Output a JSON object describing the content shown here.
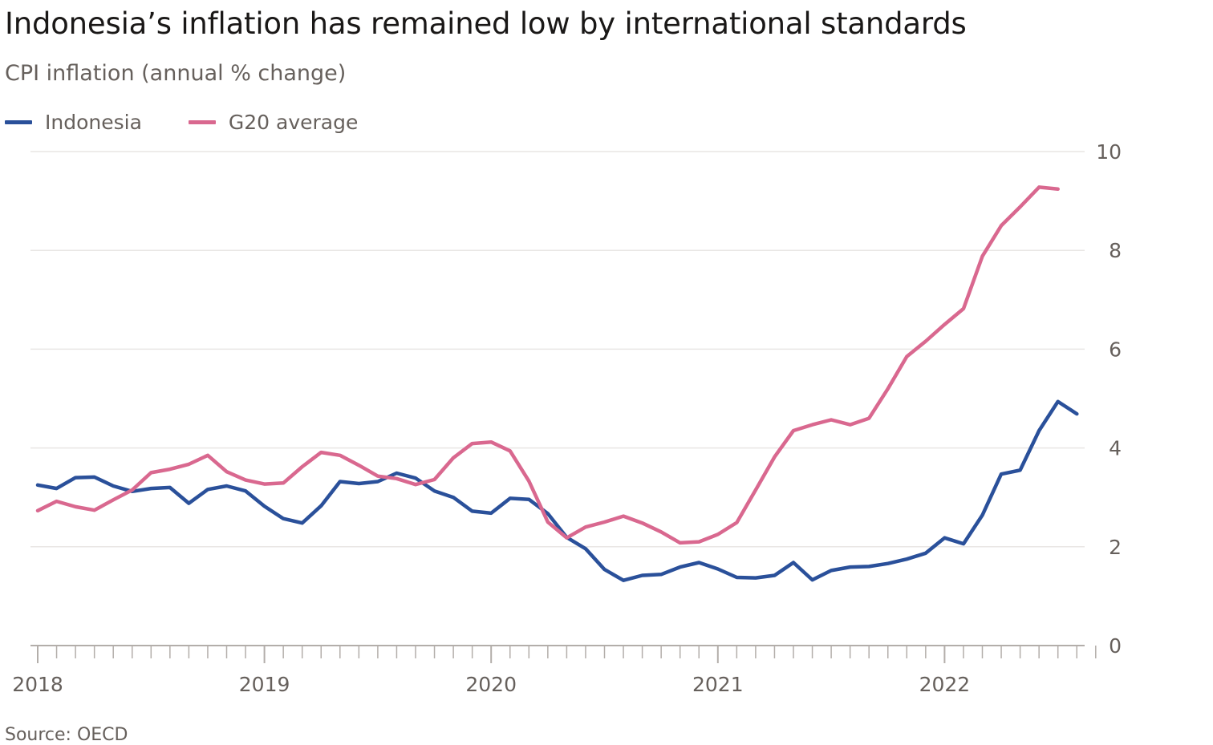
{
  "title": "Indonesia’s inflation has remained low by international standards",
  "subtitle": "CPI inflation (annual % change)",
  "source": "Source: OECD",
  "colors": {
    "indonesia": "#2a509a",
    "g20": "#d9688f",
    "grid": "#e9e6e4",
    "axis": "#b3aeaa",
    "tick_text": "#66605c"
  },
  "chart_data": {
    "type": "line",
    "title": "Indonesia’s inflation has remained low by international standards",
    "ylabel": "CPI inflation (annual % change)",
    "xlabel": "",
    "ylim": [
      0,
      10
    ],
    "y_ticks": [
      "0",
      "2",
      "4",
      "6",
      "8",
      "10"
    ],
    "x_tick_labels": [
      "2018",
      "2019",
      "2020",
      "2021",
      "2022"
    ],
    "x_start": "2018-01",
    "frequency": "monthly",
    "series": [
      {
        "name": "Indonesia",
        "color": "#2a509a",
        "values": [
          3.25,
          3.18,
          3.4,
          3.41,
          3.23,
          3.12,
          3.18,
          3.2,
          2.88,
          3.16,
          3.23,
          3.13,
          2.82,
          2.57,
          2.48,
          2.83,
          3.32,
          3.28,
          3.32,
          3.49,
          3.39,
          3.13,
          3.0,
          2.72,
          2.68,
          2.98,
          2.96,
          2.67,
          2.19,
          1.96,
          1.54,
          1.32,
          1.42,
          1.44,
          1.59,
          1.68,
          1.55,
          1.38,
          1.37,
          1.42,
          1.68,
          1.33,
          1.52,
          1.59,
          1.6,
          1.66,
          1.75,
          1.87,
          2.18,
          2.06,
          2.64,
          3.47,
          3.55,
          4.35,
          4.94,
          4.69
        ]
      },
      {
        "name": "G20 average",
        "color": "#d9688f",
        "values": [
          2.73,
          2.92,
          2.81,
          2.74,
          2.95,
          3.15,
          3.5,
          3.57,
          3.67,
          3.85,
          3.52,
          3.35,
          3.27,
          3.29,
          3.62,
          3.91,
          3.85,
          3.65,
          3.43,
          3.38,
          3.26,
          3.36,
          3.8,
          4.09,
          4.12,
          3.94,
          3.33,
          2.5,
          2.18,
          2.4,
          2.5,
          2.62,
          2.48,
          2.3,
          2.08,
          2.1,
          2.25,
          2.49,
          3.15,
          3.82,
          4.35,
          4.47,
          4.57,
          4.47,
          4.6,
          5.2,
          5.85,
          6.16,
          6.5,
          6.82,
          7.88,
          8.5,
          8.88,
          9.28,
          9.24
        ]
      }
    ]
  }
}
